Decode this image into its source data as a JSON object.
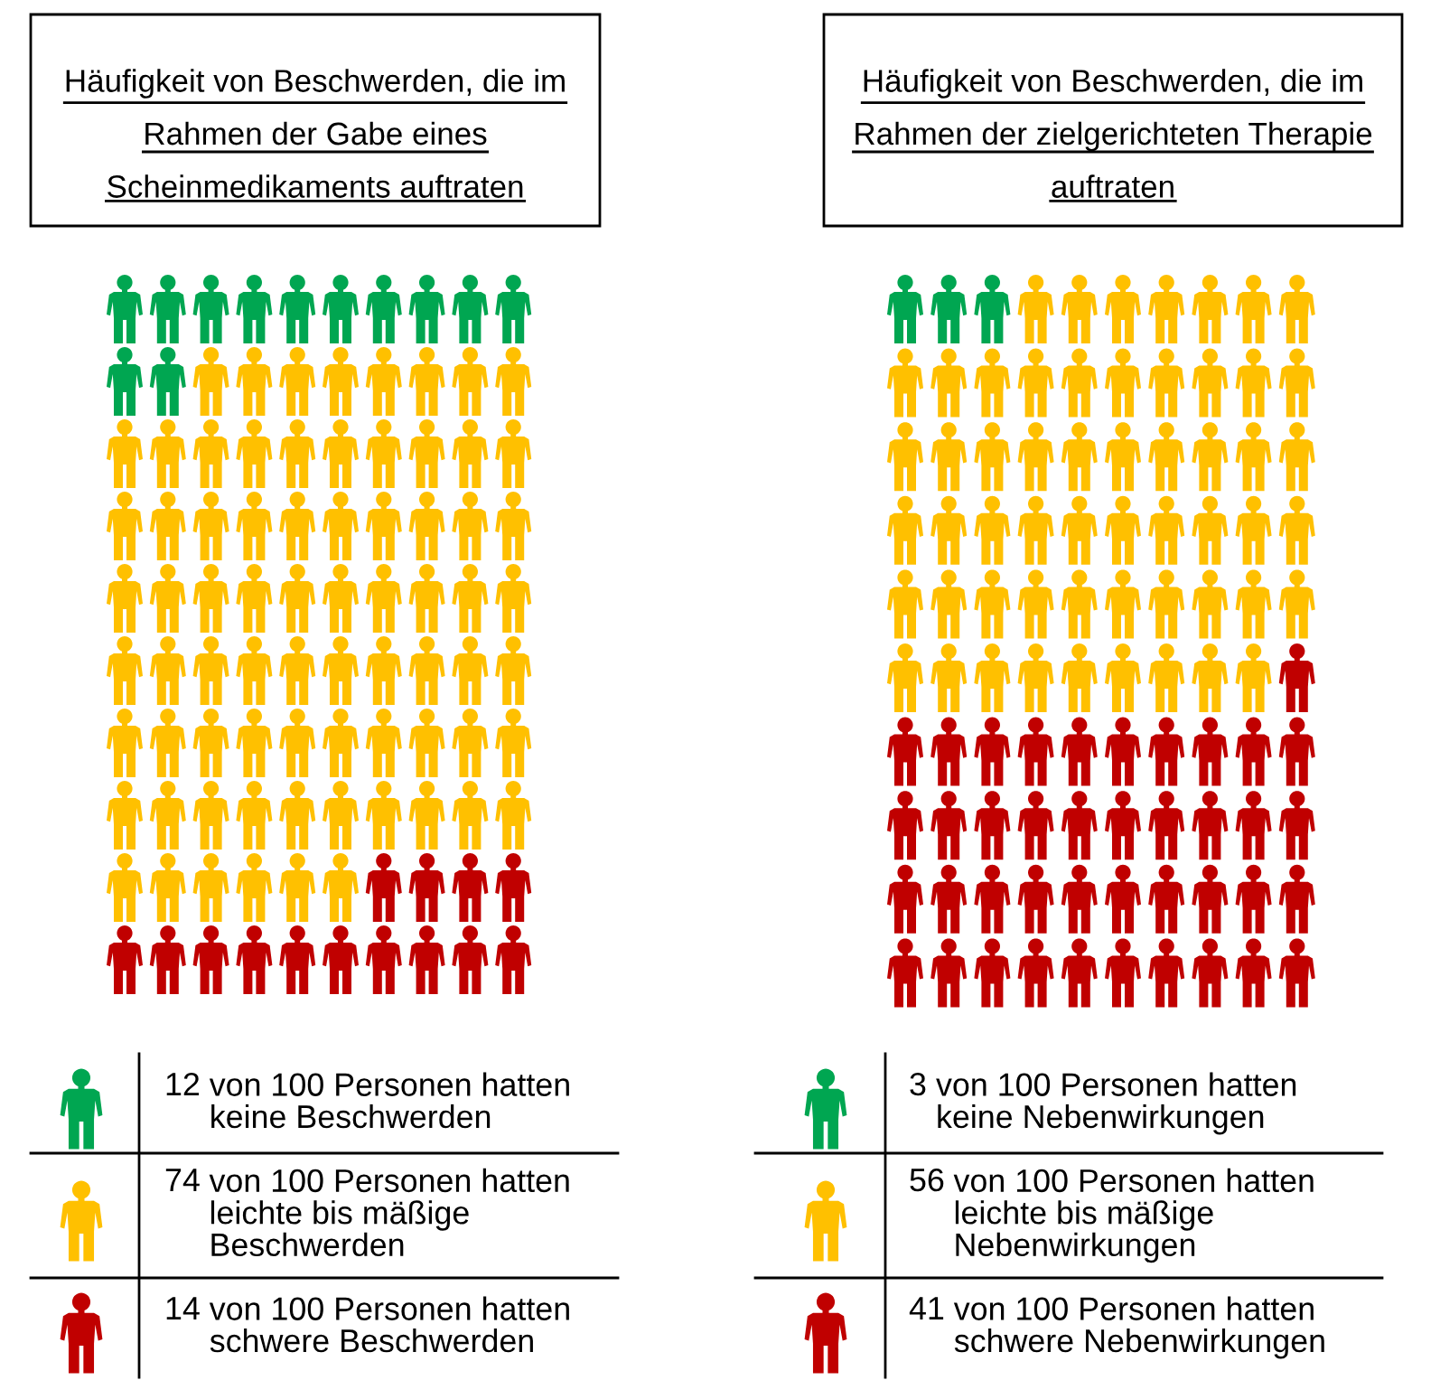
{
  "chart_data": [
    {
      "type": "other",
      "title": "Häufigkeit von Beschwerden, die im Rahmen der Gabe eines Scheinmedikaments auftraten",
      "categories": [
        "von 100 Personen hatten keine Beschwerden",
        "von 100 Personen hatten leichte bis mäßige Beschwerden",
        "von 100 Personen hatten schwere Beschwerden"
      ],
      "values": [
        12,
        74,
        14
      ],
      "data_labels": true,
      "colors": [
        "#00a651",
        "#ffc000",
        "#c00000"
      ]
    },
    {
      "type": "other",
      "title": "Häufigkeit von Beschwerden, die im Rahmen der zielgerichteten Therapie auftraten",
      "categories": [
        "von 100 Personen hatten keine Nebenwirkungen",
        "von 100 Personen hatten leichte bis mäßige Nebenwirkungen",
        "von 100 Personen hatten schwere Nebenwirkungen"
      ],
      "values": [
        3,
        56,
        41
      ],
      "data_labels": true,
      "colors": [
        "#00a651",
        "#ffc000",
        "#c00000"
      ]
    }
  ]
}
